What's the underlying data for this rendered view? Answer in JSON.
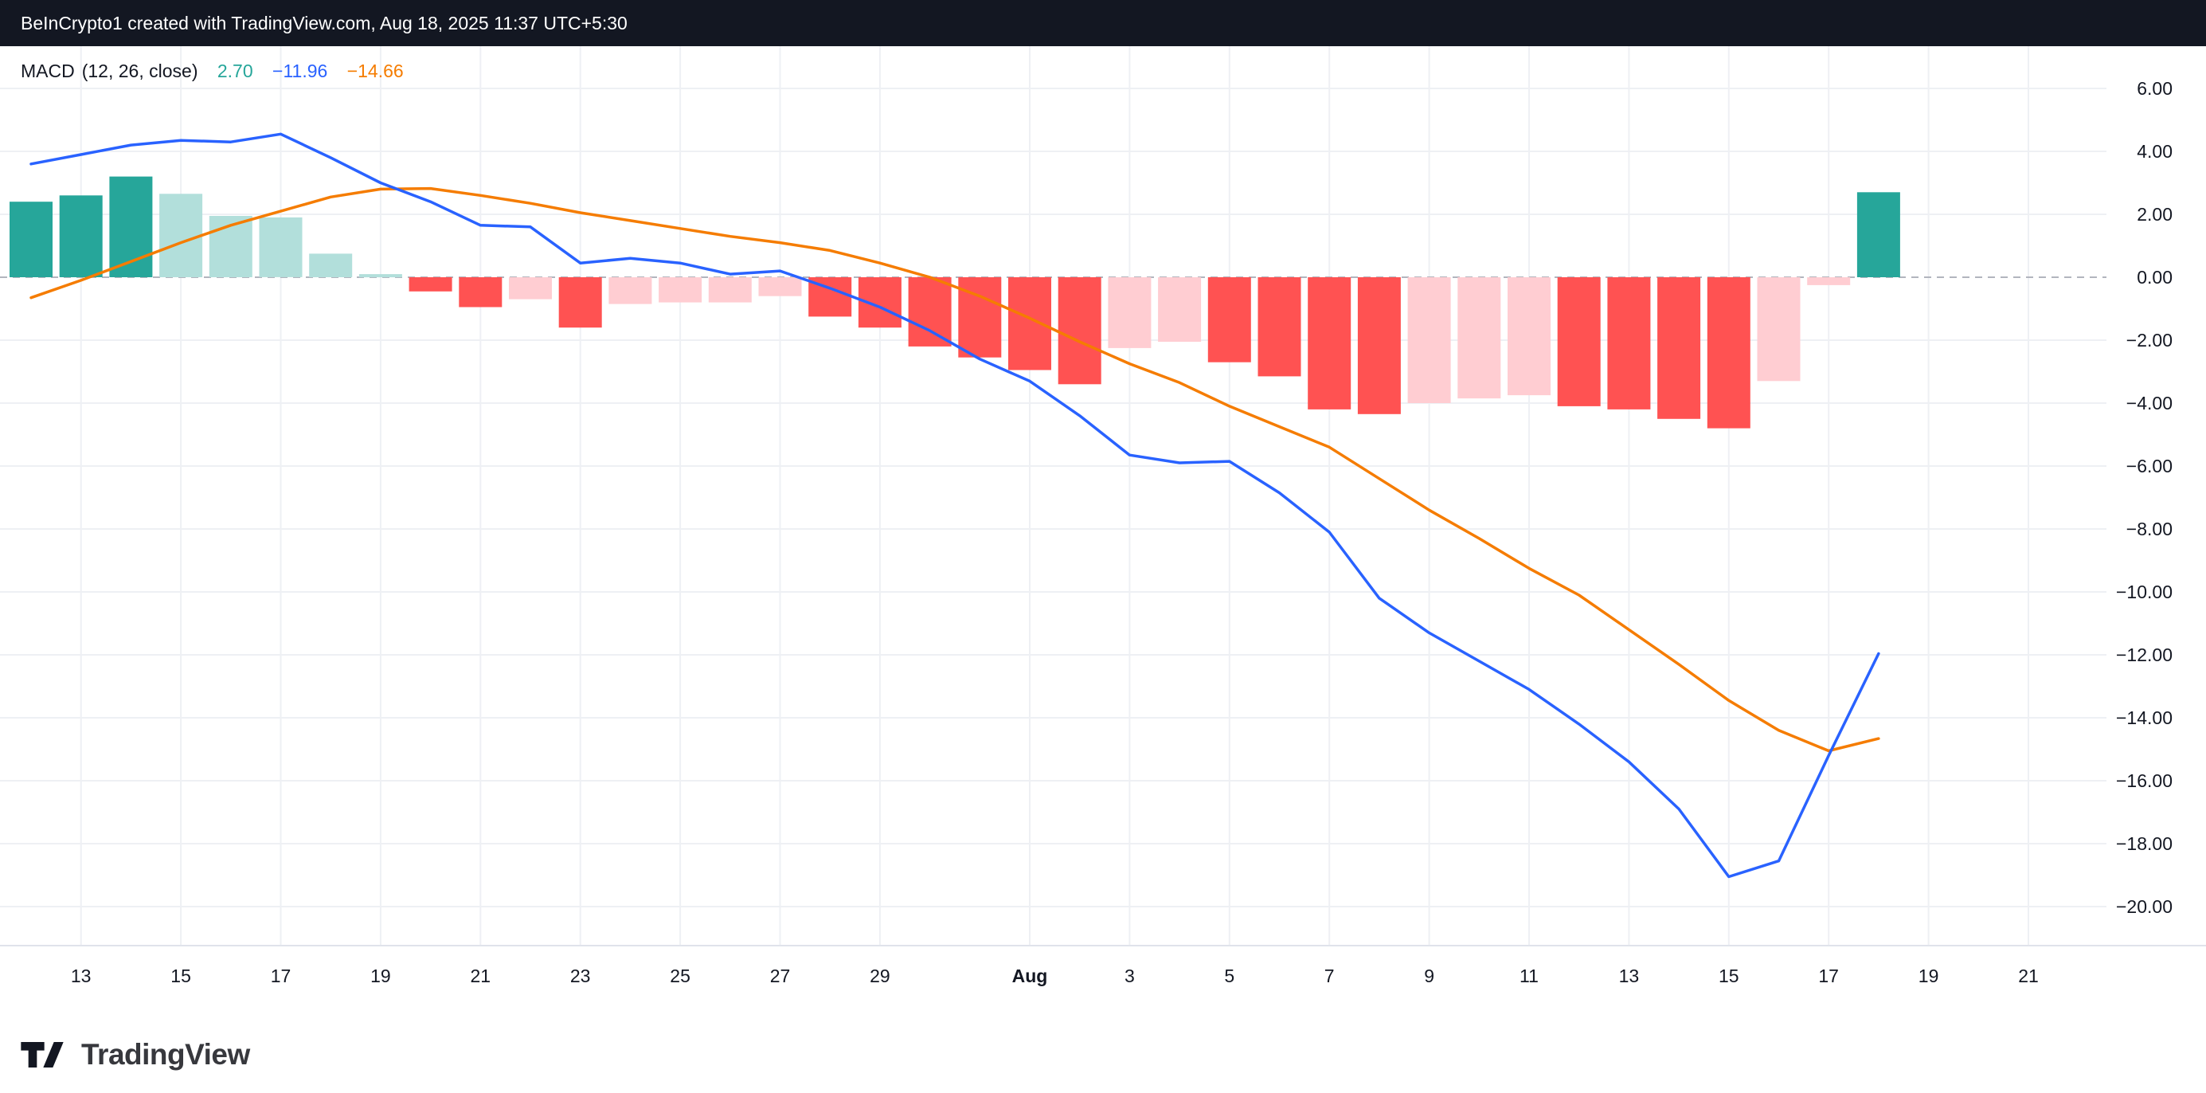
{
  "header": {
    "title": "BeInCrypto1 created with TradingView.com, Aug 18, 2025 11:37 UTC+5:30"
  },
  "legend": {
    "indicator": "MACD",
    "params": "(12, 26, close)",
    "values": {
      "histogram": "2.70",
      "macd": "−11.96",
      "signal": "−14.66"
    }
  },
  "footer": {
    "brand": "TradingView"
  },
  "colors": {
    "header_bg": "#131722",
    "header_text": "#FFFFFF",
    "pane_bg": "#FFFFFF",
    "legend_text": "#131722",
    "axis_text": "#131722",
    "footer_text": "#37383D",
    "logo": "#131722",
    "grid": "#EEF0F4",
    "zero_line": "#B2B5BE",
    "separator": "#E0E3EB",
    "hist_up_strong": "#26A69A",
    "hist_up_weak": "#B2DFDB",
    "hist_down_strong": "#FF5252",
    "hist_down_weak": "#FFCDD2",
    "macd_line": "#2962FF",
    "signal_line": "#F57C00"
  },
  "chart_data": {
    "type": "bar",
    "title": "MACD (12, 26, close)",
    "subtitle": "MACD indicator pane: histogram plus MACD and signal lines",
    "grid": true,
    "legend_position": "top-left",
    "ylim": [
      -21.3,
      7.3
    ],
    "y_ticks": [
      {
        "value": 6,
        "label": "6.00"
      },
      {
        "value": 4,
        "label": "4.00"
      },
      {
        "value": 2,
        "label": "2.00"
      },
      {
        "value": 0,
        "label": "0.00"
      },
      {
        "value": -2,
        "label": "−2.00"
      },
      {
        "value": -4,
        "label": "−4.00"
      },
      {
        "value": -6,
        "label": "−6.00"
      },
      {
        "value": -8,
        "label": "−8.00"
      },
      {
        "value": -10,
        "label": "−10.00"
      },
      {
        "value": -12,
        "label": "−12.00"
      },
      {
        "value": -14,
        "label": "−14.00"
      },
      {
        "value": -16,
        "label": "−16.00"
      },
      {
        "value": -18,
        "label": "−18.00"
      },
      {
        "value": -20,
        "label": "−20.00"
      }
    ],
    "x_ticks": [
      {
        "pos": 1,
        "label": "13"
      },
      {
        "pos": 3,
        "label": "15"
      },
      {
        "pos": 5,
        "label": "17"
      },
      {
        "pos": 7,
        "label": "19"
      },
      {
        "pos": 9,
        "label": "21"
      },
      {
        "pos": 11,
        "label": "23"
      },
      {
        "pos": 13,
        "label": "25"
      },
      {
        "pos": 15,
        "label": "27"
      },
      {
        "pos": 17,
        "label": "29"
      },
      {
        "pos": 20,
        "label": "Aug",
        "bold": true
      },
      {
        "pos": 22,
        "label": "3"
      },
      {
        "pos": 24,
        "label": "5"
      },
      {
        "pos": 26,
        "label": "7"
      },
      {
        "pos": 28,
        "label": "9"
      },
      {
        "pos": 30,
        "label": "11"
      },
      {
        "pos": 32,
        "label": "13"
      },
      {
        "pos": 34,
        "label": "15"
      },
      {
        "pos": 36,
        "label": "17"
      },
      {
        "pos": 38,
        "label": "19"
      },
      {
        "pos": 40,
        "label": "21"
      }
    ],
    "histogram": [
      {
        "v": 2.4,
        "c": "up_strong"
      },
      {
        "v": 2.6,
        "c": "up_strong"
      },
      {
        "v": 3.2,
        "c": "up_strong"
      },
      {
        "v": 2.65,
        "c": "up_weak"
      },
      {
        "v": 1.95,
        "c": "up_weak"
      },
      {
        "v": 1.9,
        "c": "up_weak"
      },
      {
        "v": 0.75,
        "c": "up_weak"
      },
      {
        "v": 0.1,
        "c": "up_weak"
      },
      {
        "v": -0.45,
        "c": "down_strong"
      },
      {
        "v": -0.95,
        "c": "down_strong"
      },
      {
        "v": -0.7,
        "c": "down_weak"
      },
      {
        "v": -1.6,
        "c": "down_strong"
      },
      {
        "v": -0.85,
        "c": "down_weak"
      },
      {
        "v": -0.8,
        "c": "down_weak"
      },
      {
        "v": -0.8,
        "c": "down_weak"
      },
      {
        "v": -0.6,
        "c": "down_weak"
      },
      {
        "v": -1.25,
        "c": "down_strong"
      },
      {
        "v": -1.6,
        "c": "down_strong"
      },
      {
        "v": -2.2,
        "c": "down_strong"
      },
      {
        "v": -2.55,
        "c": "down_strong"
      },
      {
        "v": -2.95,
        "c": "down_strong"
      },
      {
        "v": -3.4,
        "c": "down_strong"
      },
      {
        "v": -2.25,
        "c": "down_weak"
      },
      {
        "v": -2.05,
        "c": "down_weak"
      },
      {
        "v": -2.7,
        "c": "down_strong"
      },
      {
        "v": -3.15,
        "c": "down_strong"
      },
      {
        "v": -4.2,
        "c": "down_strong"
      },
      {
        "v": -4.35,
        "c": "down_strong"
      },
      {
        "v": -4.0,
        "c": "down_weak"
      },
      {
        "v": -3.85,
        "c": "down_weak"
      },
      {
        "v": -3.75,
        "c": "down_weak"
      },
      {
        "v": -4.1,
        "c": "down_strong"
      },
      {
        "v": -4.2,
        "c": "down_strong"
      },
      {
        "v": -4.5,
        "c": "down_strong"
      },
      {
        "v": -4.8,
        "c": "down_strong"
      },
      {
        "v": -3.3,
        "c": "down_weak"
      },
      {
        "v": -0.25,
        "c": "down_weak"
      },
      {
        "v": 2.7,
        "c": "up_strong"
      }
    ],
    "series": [
      {
        "name": "MACD",
        "color_key": "macd_line",
        "values": [
          3.6,
          3.9,
          4.2,
          4.35,
          4.3,
          4.55,
          3.8,
          3.0,
          2.4,
          1.65,
          1.6,
          0.45,
          0.6,
          0.45,
          0.1,
          0.2,
          -0.35,
          -0.95,
          -1.7,
          -2.6,
          -3.3,
          -4.4,
          -5.65,
          -5.9,
          -5.85,
          -6.85,
          -8.1,
          -10.2,
          -11.3,
          -12.2,
          -13.1,
          -14.2,
          -15.4,
          -16.9,
          -19.05,
          -18.55,
          -15.2,
          -11.96
        ]
      },
      {
        "name": "Signal",
        "color_key": "signal_line",
        "values": [
          -0.65,
          -0.1,
          0.5,
          1.1,
          1.65,
          2.1,
          2.55,
          2.8,
          2.82,
          2.6,
          2.35,
          2.05,
          1.8,
          1.55,
          1.3,
          1.1,
          0.85,
          0.45,
          0.0,
          -0.6,
          -1.3,
          -2.05,
          -2.75,
          -3.35,
          -4.1,
          -4.75,
          -5.4,
          -6.4,
          -7.4,
          -8.3,
          -9.25,
          -10.1,
          -11.2,
          -12.3,
          -13.45,
          -14.4,
          -15.05,
          -14.66
        ]
      }
    ],
    "zero_line": 0
  }
}
